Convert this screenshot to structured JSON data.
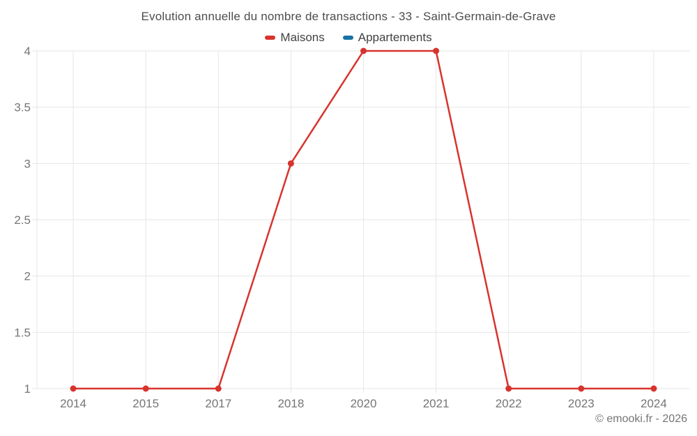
{
  "title": "Evolution annuelle du nombre de transactions - 33 - Saint-Germain-de-Grave",
  "footer": "© emooki.fr - 2026",
  "colors": {
    "maisons": "#d7332d",
    "appartements": "#1673a2",
    "grid": "#e6e6e6",
    "axis_text": "#757575",
    "title_text": "#4d4d4d",
    "legend_text": "#424242",
    "background": "#ffffff"
  },
  "chart_data": {
    "type": "line",
    "title": "Evolution annuelle du nombre de transactions - 33 - Saint-Germain-de-Grave",
    "categories": [
      "2014",
      "2015",
      "2017",
      "2018",
      "2020",
      "2021",
      "2022",
      "2023",
      "2024"
    ],
    "series": [
      {
        "name": "Maisons",
        "color": "#d7332d",
        "values": [
          1,
          1,
          1,
          3,
          4,
          4,
          1,
          1,
          1
        ]
      },
      {
        "name": "Appartements",
        "color": "#1673a2",
        "values": []
      }
    ],
    "xlabel": "",
    "ylabel": "",
    "ylim": [
      1,
      4
    ],
    "yticks": [
      1,
      1.5,
      2,
      2.5,
      3,
      3.5,
      4
    ],
    "grid": true,
    "legend_position": "top",
    "marker": "circle"
  }
}
